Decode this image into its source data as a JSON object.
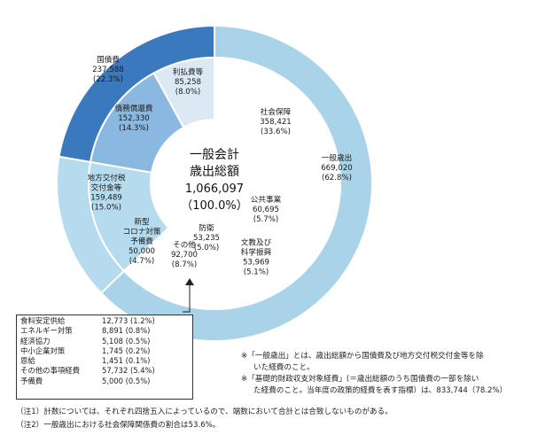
{
  "chart_data": {
    "type": "pie",
    "variant": "nested-donut",
    "center": {
      "title_line1": "一般会計",
      "title_line2": "歳出総額",
      "total": "1,066,097",
      "total_pct": "（100.0%）"
    },
    "outer_ring": [
      {
        "name": "一般歳出",
        "value": "669,020",
        "pct": "(62.8%)",
        "raw": 669020,
        "color": "#a9d3e8"
      },
      {
        "name": "地方交付税交付金等",
        "label_lines": [
          "地方交付税",
          "交付金等"
        ],
        "value": "159,489",
        "pct": "(15.0%)",
        "raw": 159489,
        "color": "#b6dbee"
      },
      {
        "name": "国債費",
        "value": "237,588",
        "pct": "(22.3%)",
        "raw": 237588,
        "color": "#3a79bd"
      }
    ],
    "inner_ring": [
      {
        "name": "社会保障",
        "value": "358,421",
        "pct": "(33.6%)",
        "raw": 358421,
        "color": "#ffffff"
      },
      {
        "name": "公共事業",
        "value": "60,695",
        "pct": "(5.7%)",
        "raw": 60695,
        "color": "#ffffff"
      },
      {
        "name": "文教及び科学振興",
        "label_lines": [
          "文教及び",
          "科学振興"
        ],
        "value": "53,969",
        "pct": "(5.1%)",
        "raw": 53969,
        "color": "#ffffff"
      },
      {
        "name": "防衛",
        "value": "53,235",
        "pct": "(5.0%)",
        "raw": 53235,
        "color": "#ffffff"
      },
      {
        "name": "その他",
        "value": "92,700",
        "pct": "(8.7%)",
        "raw": 92700,
        "color": "#ffffff"
      },
      {
        "name": "新型コロナ対策予備費",
        "label_lines": [
          "新型",
          "コロナ対策",
          "予備費"
        ],
        "value": "50,000",
        "pct": "(4.7%)",
        "raw": 50000,
        "color": "#ffffff"
      },
      {
        "name": "地方交付税交付金等",
        "value": "159,489",
        "pct": "(15.0%)",
        "raw": 159489,
        "color": "#b6dbee"
      },
      {
        "name": "債務償還費",
        "value": "152,330",
        "pct": "(14.3%)",
        "raw": 152330,
        "color": "#8bb8e0"
      },
      {
        "name": "利払費等",
        "value": "85,258",
        "pct": "(8.0%)",
        "raw": 85258,
        "color": "#dce9f5"
      }
    ],
    "other_breakdown": [
      {
        "name": "食料安定供給",
        "value": "12,773 (1.2%)"
      },
      {
        "name": "エネルギー対策",
        "value": "8,891 (0.8%)"
      },
      {
        "name": "経済協力",
        "value": "5,108 (0.5%)"
      },
      {
        "name": "中小企業対策",
        "value": "1,745 (0.2%)"
      },
      {
        "name": "恩給",
        "value": "1,451 (0.1%)"
      },
      {
        "name": "その他の事項経費",
        "value": "57,732 (5.4%)"
      },
      {
        "name": "予備費",
        "value": "5,000 (0.5%)"
      }
    ]
  },
  "notes": {
    "note_a_line1": "※「一般歳出」とは、歳出総額から国債費及び地方交付税交付金等を除",
    "note_a_line2": "いた経費のこと。",
    "note_b_line1": "※「基礎的財政収支対象経費」(＝歳出総額のうち国債費の一部を除い",
    "note_b_line2": "た経費のこと。当年度の政策的経費を表す指標）は、833,744（78.2%）"
  },
  "footnotes": {
    "f1": "（注1）計数については、それぞれ四捨五入によっているので、端数において合計とは合致しないものがある。",
    "f2": "（注2）一般歳出における社会保障関係費の割合は53.6%。"
  }
}
